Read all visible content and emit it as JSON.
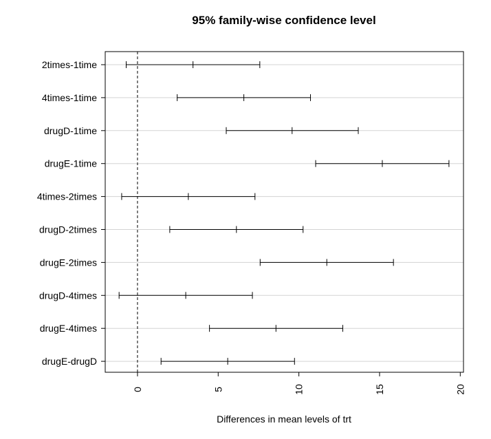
{
  "chart_data": {
    "type": "errorbar",
    "title": "95% family-wise confidence level",
    "xlabel": "Differences in mean levels of trt",
    "ylabel": "",
    "xlim": [
      -2,
      20.2
    ],
    "x_ticks": [
      0,
      5,
      10,
      15,
      20
    ],
    "reference_line": 0,
    "grid": true,
    "comparisons": [
      {
        "label": "2times-1time",
        "lower": -0.7,
        "estimate": 3.44,
        "upper": 7.58
      },
      {
        "label": "4times-1time",
        "lower": 2.46,
        "estimate": 6.59,
        "upper": 10.72
      },
      {
        "label": "drugD-1time",
        "lower": 5.5,
        "estimate": 9.58,
        "upper": 13.68
      },
      {
        "label": "drugE-1time",
        "lower": 11.04,
        "estimate": 15.17,
        "upper": 19.3
      },
      {
        "label": "4times-2times",
        "lower": -0.98,
        "estimate": 3.15,
        "upper": 7.28
      },
      {
        "label": "drugD-2times",
        "lower": 2.0,
        "estimate": 6.13,
        "upper": 10.26
      },
      {
        "label": "drugE-2times",
        "lower": 7.6,
        "estimate": 11.73,
        "upper": 15.86
      },
      {
        "label": "drugD-4times",
        "lower": -1.14,
        "estimate": 2.99,
        "upper": 7.12
      },
      {
        "label": "drugE-4times",
        "lower": 4.46,
        "estimate": 8.58,
        "upper": 12.72
      },
      {
        "label": "drugE-drugD",
        "lower": 1.46,
        "estimate": 5.59,
        "upper": 9.73
      }
    ]
  }
}
